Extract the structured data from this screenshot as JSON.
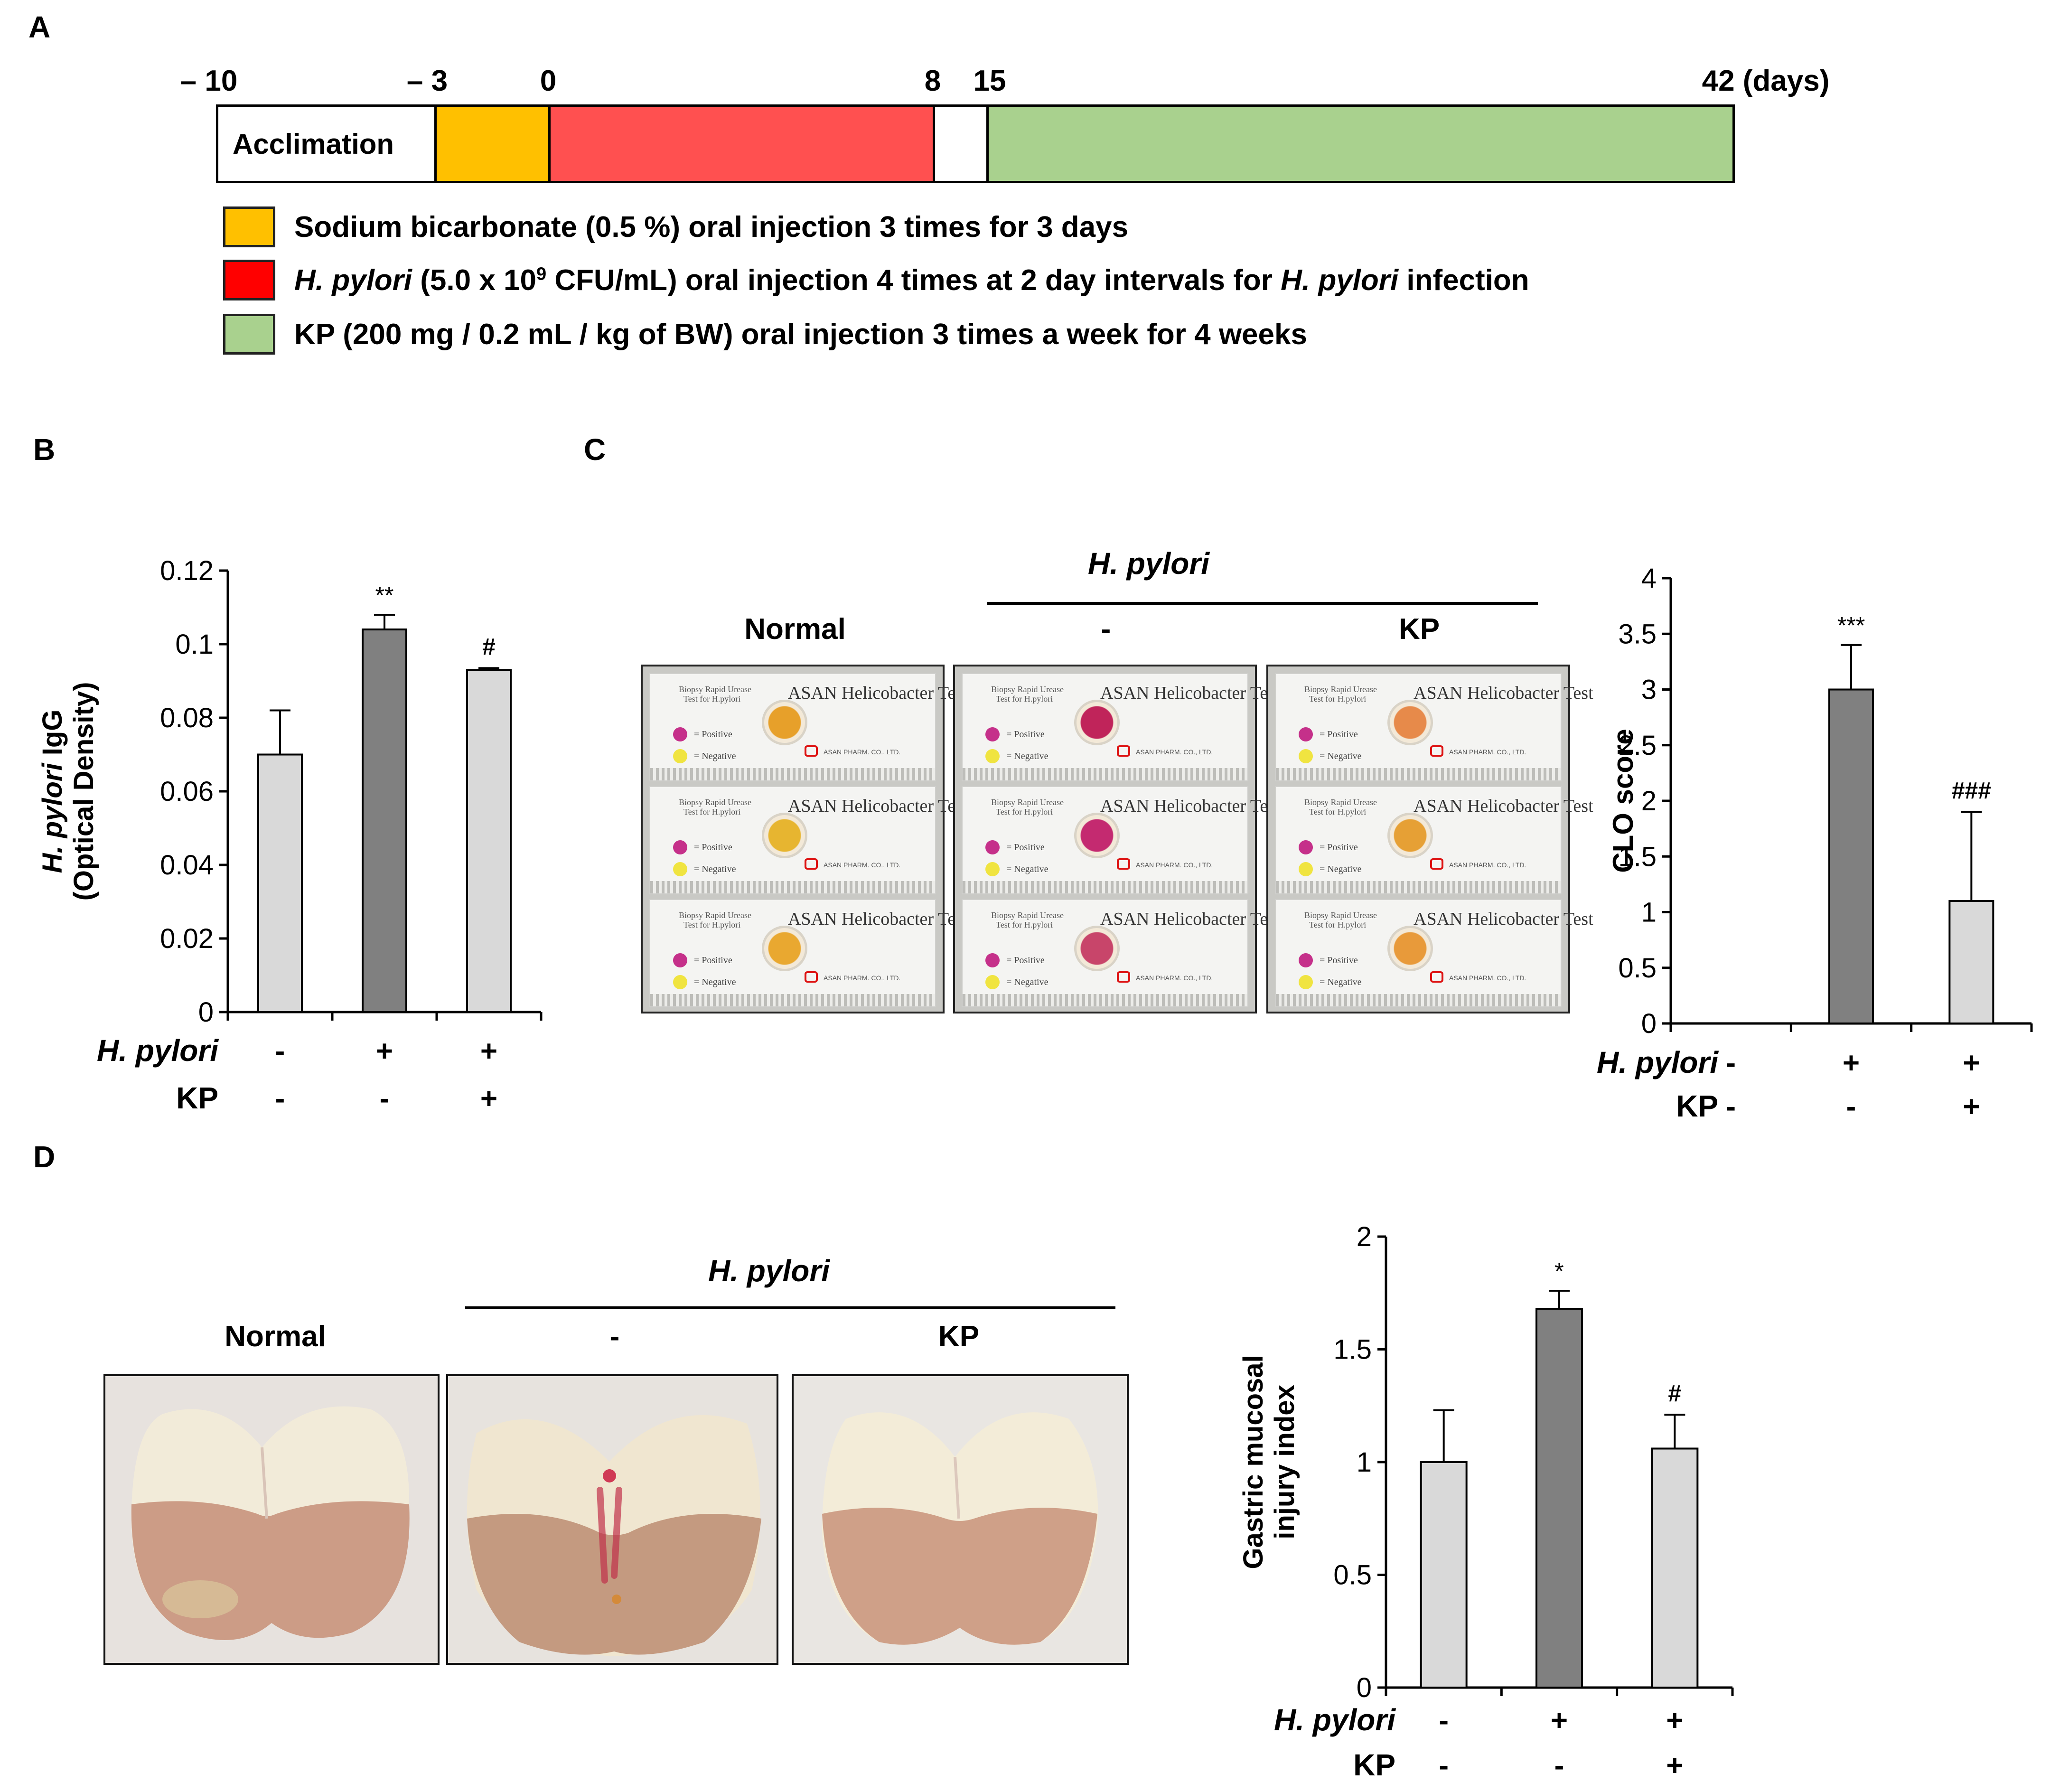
{
  "panel_labels": {
    "a": "A",
    "b": "B",
    "c": "C",
    "d": "D"
  },
  "timeline": {
    "ticks": [
      {
        "text": "– 10",
        "day": -10
      },
      {
        "text": "– 3",
        "day": -3
      },
      {
        "text": "0",
        "day": 0
      },
      {
        "text": "8",
        "day": 8
      },
      {
        "text": "15",
        "day": 15
      },
      {
        "text": "42 (days)",
        "day": 42
      }
    ],
    "segments": [
      {
        "label": "Acclimation",
        "from_day": -10,
        "to_day": -3,
        "color": "#ffffff"
      },
      {
        "label": "",
        "from_day": -3,
        "to_day": 0,
        "color": "#ffc000"
      },
      {
        "label": "",
        "from_day": 0,
        "to_day": 8,
        "color": "#ff5050"
      },
      {
        "label": "",
        "from_day": 8,
        "to_day": 15,
        "color": "#ffffff"
      },
      {
        "label": "",
        "from_day": 15,
        "to_day": 42,
        "color": "#a9d18e"
      }
    ],
    "legend": [
      {
        "color": "#ffc000",
        "text": "Sodium bicarbonate (0.5 %)  oral injection 3 times  for 3 days"
      },
      {
        "color": "#ff0000",
        "pre_italic": "H. pylori",
        "mid1": " (5.0 x 10",
        "sup": "9",
        "mid2": " CFU/mL) oral injection 4 times at 2 day intervals for ",
        "italic2": "H. pylori",
        "post": " infection"
      },
      {
        "color": "#a9d18e",
        "text": "KP (200  mg / 0.2 mL / kg of BW) oral injection 3 times a  week for 4 weeks"
      }
    ]
  },
  "plate_labels": {
    "hpylori_header": "H. pylori",
    "normal": "Normal",
    "minus": "-",
    "kp": "KP"
  },
  "kit": {
    "title": "Helicobacter Test",
    "brand": "ASAN",
    "subtitle_line1": "Biopsy Rapid Urease",
    "subtitle_line2": "Test for H.pylori",
    "positive": "= Positive",
    "negative": "= Negative",
    "company": "ASAN PHARM. CO., LTD."
  },
  "group_rows": {
    "row1_label": "H. pylori",
    "row2_label": "KP",
    "row1_values": [
      "-",
      "+",
      "+"
    ],
    "row2_values": [
      "-",
      "-",
      "+"
    ]
  },
  "chart_data": [
    {
      "id": "B",
      "type": "bar",
      "categories": [
        "Normal",
        "H. pylori",
        "H. pylori + KP"
      ],
      "values": [
        0.07,
        0.104,
        0.093
      ],
      "errors": [
        0.012,
        0.004,
        0.0005
      ],
      "colors": [
        "#d9d9d9",
        "#808080",
        "#d9d9d9"
      ],
      "significance": [
        "",
        "**",
        "#"
      ],
      "ylabel_italic": "H. pylori",
      "ylabel_rest": " IgG",
      "ylabel_line2": "(Optical Density)",
      "ylim": [
        0,
        0.12
      ],
      "ytick_values": [
        0,
        0.02,
        0.04,
        0.06,
        0.08,
        0.1,
        0.12
      ],
      "ytick_labels": [
        "0",
        "0.02",
        "0.04",
        "0.06",
        "0.08",
        "0.1",
        "0.12"
      ]
    },
    {
      "id": "C",
      "type": "bar",
      "categories": [
        "Normal",
        "H. pylori",
        "H. pylori + KP"
      ],
      "values": [
        0,
        3.0,
        1.1
      ],
      "errors": [
        0,
        0.4,
        0.8
      ],
      "colors": [
        "#d9d9d9",
        "#808080",
        "#d9d9d9"
      ],
      "significance": [
        "",
        "***",
        "###"
      ],
      "ylabel": "CLO score",
      "ylim": [
        0,
        4
      ],
      "ytick_values": [
        0,
        0.5,
        1,
        1.5,
        2,
        2.5,
        3,
        3.5,
        4
      ],
      "ytick_labels": [
        "0",
        "0.5",
        "1",
        "1.5",
        "2",
        "2.5",
        "3",
        "3.5",
        "4"
      ]
    },
    {
      "id": "D",
      "type": "bar",
      "categories": [
        "Normal",
        "H. pylori",
        "H. pylori + KP"
      ],
      "values": [
        1.0,
        1.68,
        1.06
      ],
      "errors": [
        0.23,
        0.08,
        0.15
      ],
      "colors": [
        "#d9d9d9",
        "#808080",
        "#d9d9d9"
      ],
      "significance": [
        "",
        "*",
        "#"
      ],
      "ylabel": "Gastric mucosal",
      "ylabel_line2": "injury index",
      "ylim": [
        0,
        2
      ],
      "ytick_values": [
        0,
        0.5,
        1,
        1.5,
        2
      ],
      "ytick_labels": [
        "0",
        "0.5",
        "1",
        "1.5",
        "2"
      ]
    }
  ]
}
